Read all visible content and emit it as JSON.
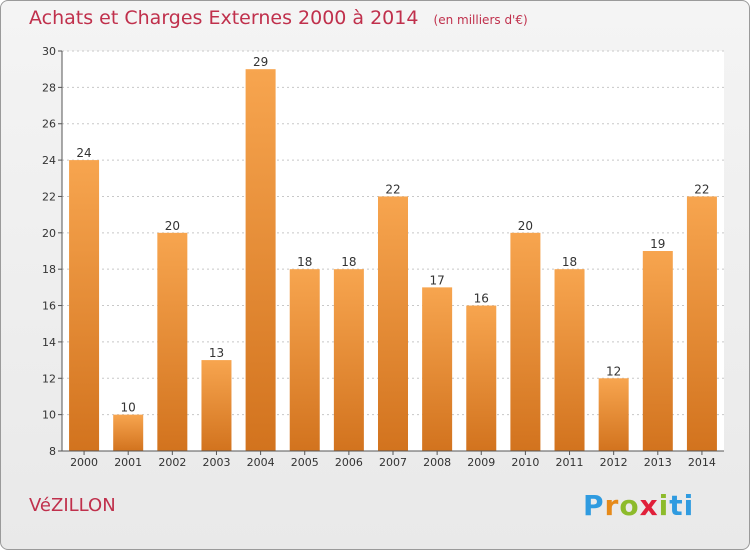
{
  "header": {
    "title": "Achats et Charges Externes 2000 à 2014",
    "unit": "(en milliers d'€)"
  },
  "commune": "VéZILLON",
  "logo": {
    "letters": [
      "P",
      "r",
      "o",
      "x",
      "i",
      "t",
      "i"
    ]
  },
  "colors": {
    "title": "#c0304c",
    "bar_light": "#f7a54f",
    "bar_dark": "#d2731e"
  },
  "chart_data": {
    "type": "bar",
    "title": "Achats et Charges Externes 2000 à 2014",
    "subtitle": "(en milliers d'€)",
    "xlabel": "",
    "ylabel": "",
    "categories": [
      "2000",
      "2001",
      "2002",
      "2003",
      "2004",
      "2005",
      "2006",
      "2007",
      "2008",
      "2009",
      "2010",
      "2011",
      "2012",
      "2013",
      "2014"
    ],
    "values": [
      24,
      10,
      20,
      13,
      29,
      18,
      18,
      22,
      17,
      16,
      20,
      18,
      12,
      19,
      22
    ],
    "ylim": [
      8,
      30
    ],
    "yticks": [
      8,
      10,
      12,
      14,
      16,
      18,
      20,
      22,
      24,
      26,
      28,
      30
    ],
    "grid": true,
    "legend": "none"
  }
}
